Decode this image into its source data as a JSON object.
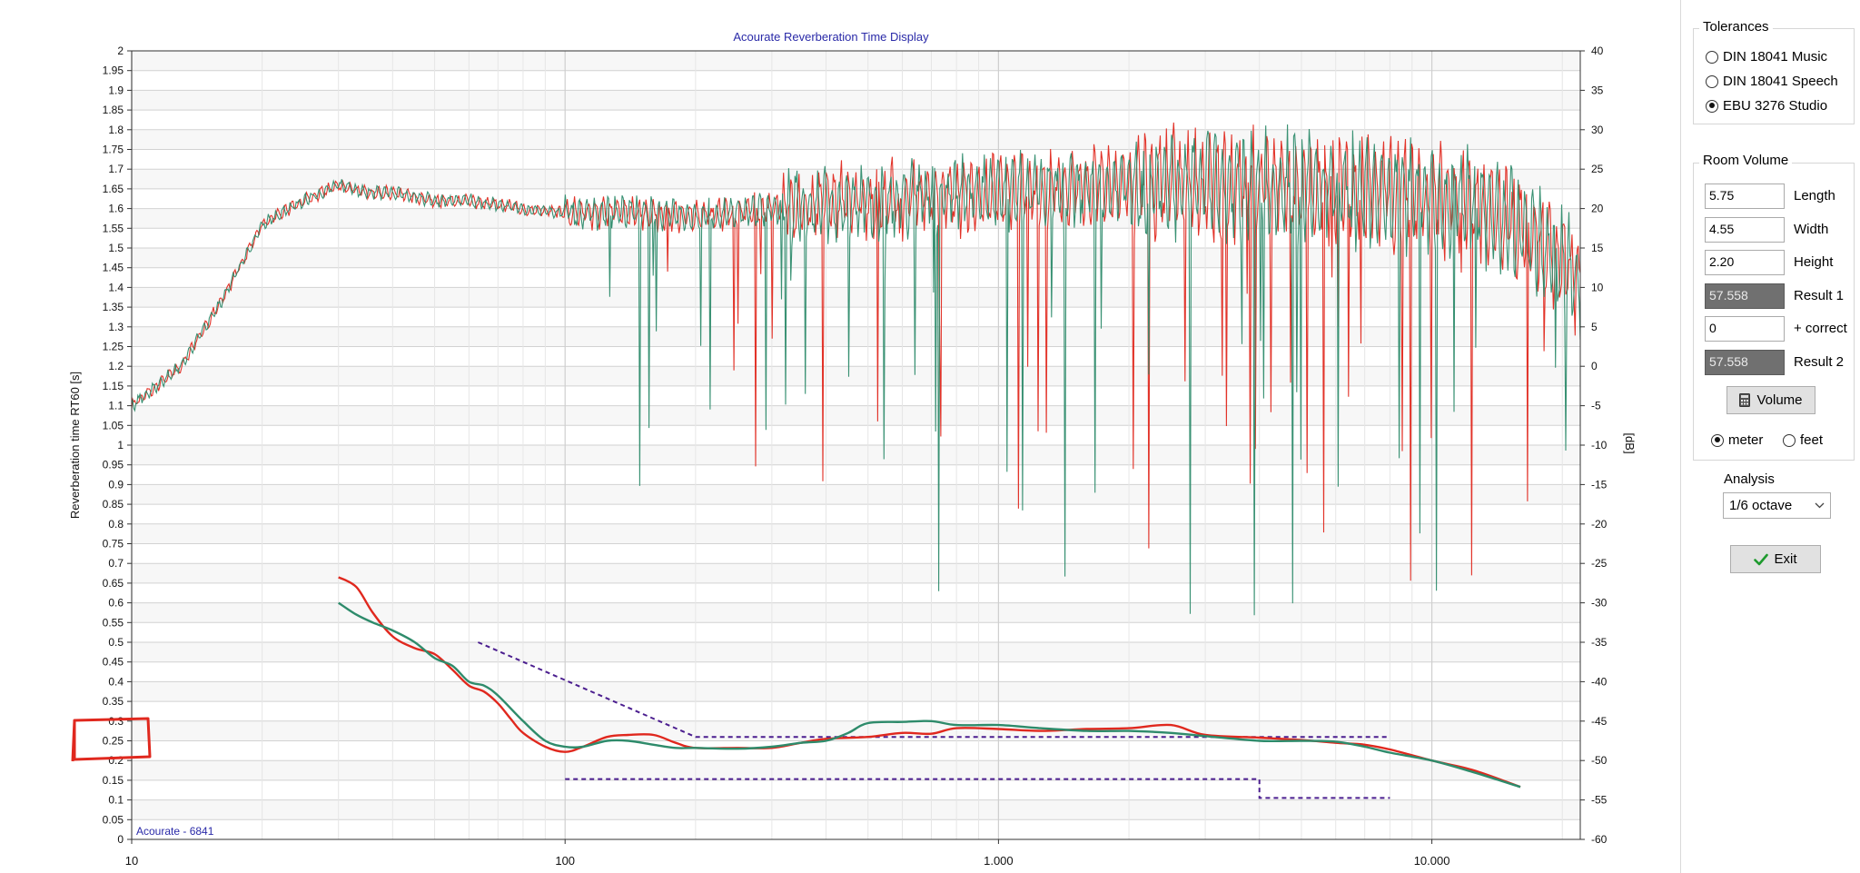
{
  "chart_data": {
    "type": "line",
    "title": "Acourate Reverberation Time Display",
    "watermark": "Acourate - 6841",
    "xlabel": "",
    "ylabel": "Reverberation time RT60 [s]",
    "y2label": "[dB]",
    "x_scale": "log",
    "xlim": [
      10,
      22000
    ],
    "ylim": [
      0,
      2
    ],
    "y2lim": [
      -60,
      40
    ],
    "grid": true,
    "x_tick_labels": [
      {
        "value": 10,
        "label": "10"
      },
      {
        "value": 100,
        "label": "100"
      },
      {
        "value": 1000,
        "label": "1.000"
      },
      {
        "value": 10000,
        "label": "10.000"
      }
    ],
    "y_ticks": [
      "0",
      "0.05",
      "0.1",
      "0.15",
      "0.2",
      "0.25",
      "0.3",
      "0.35",
      "0.4",
      "0.45",
      "0.5",
      "0.55",
      "0.6",
      "0.65",
      "0.7",
      "0.75",
      "0.8",
      "0.85",
      "0.9",
      "0.95",
      "1",
      "1.05",
      "1.1",
      "1.15",
      "1.2",
      "1.25",
      "1.3",
      "1.35",
      "1.4",
      "1.45",
      "1.5",
      "1.55",
      "1.6",
      "1.65",
      "1.7",
      "1.75",
      "1.8",
      "1.85",
      "1.9",
      "1.95",
      "2"
    ],
    "y2_ticks": [
      "-60",
      "-55",
      "-50",
      "-45",
      "-40",
      "-35",
      "-30",
      "-25",
      "-20",
      "-15",
      "-10",
      "-5",
      "0",
      "5",
      "10",
      "15",
      "20",
      "25",
      "30",
      "35",
      "40"
    ],
    "rt60_series": [
      {
        "color": "#e0281e",
        "points": [
          [
            30,
            0.665
          ],
          [
            33,
            0.64
          ],
          [
            36,
            0.575
          ],
          [
            40,
            0.515
          ],
          [
            45,
            0.485
          ],
          [
            50,
            0.47
          ],
          [
            55,
            0.43
          ],
          [
            60,
            0.39
          ],
          [
            65,
            0.375
          ],
          [
            70,
            0.345
          ],
          [
            75,
            0.305
          ],
          [
            80,
            0.27
          ],
          [
            90,
            0.235
          ],
          [
            100,
            0.222
          ],
          [
            110,
            0.235
          ],
          [
            125,
            0.26
          ],
          [
            140,
            0.265
          ],
          [
            160,
            0.265
          ],
          [
            180,
            0.245
          ],
          [
            200,
            0.232
          ],
          [
            250,
            0.232
          ],
          [
            300,
            0.232
          ],
          [
            350,
            0.245
          ],
          [
            400,
            0.255
          ],
          [
            500,
            0.26
          ],
          [
            600,
            0.27
          ],
          [
            700,
            0.268
          ],
          [
            800,
            0.282
          ],
          [
            1000,
            0.28
          ],
          [
            1250,
            0.275
          ],
          [
            1600,
            0.28
          ],
          [
            2000,
            0.282
          ],
          [
            2500,
            0.29
          ],
          [
            3000,
            0.265
          ],
          [
            4000,
            0.258
          ],
          [
            5000,
            0.252
          ],
          [
            6000,
            0.245
          ],
          [
            7000,
            0.24
          ],
          [
            8000,
            0.228
          ],
          [
            10000,
            0.2
          ],
          [
            12500,
            0.175
          ],
          [
            16000,
            0.133
          ]
        ]
      },
      {
        "color": "#2e8b6b",
        "points": [
          [
            30,
            0.6
          ],
          [
            33,
            0.57
          ],
          [
            36,
            0.55
          ],
          [
            40,
            0.53
          ],
          [
            45,
            0.5
          ],
          [
            50,
            0.46
          ],
          [
            55,
            0.44
          ],
          [
            60,
            0.4
          ],
          [
            65,
            0.39
          ],
          [
            70,
            0.365
          ],
          [
            80,
            0.3
          ],
          [
            90,
            0.25
          ],
          [
            100,
            0.235
          ],
          [
            110,
            0.235
          ],
          [
            125,
            0.25
          ],
          [
            140,
            0.25
          ],
          [
            160,
            0.24
          ],
          [
            180,
            0.232
          ],
          [
            200,
            0.232
          ],
          [
            250,
            0.23
          ],
          [
            300,
            0.235
          ],
          [
            350,
            0.245
          ],
          [
            400,
            0.25
          ],
          [
            450,
            0.27
          ],
          [
            500,
            0.295
          ],
          [
            600,
            0.298
          ],
          [
            700,
            0.3
          ],
          [
            800,
            0.29
          ],
          [
            1000,
            0.29
          ],
          [
            1250,
            0.282
          ],
          [
            1600,
            0.275
          ],
          [
            2000,
            0.275
          ],
          [
            2500,
            0.27
          ],
          [
            3000,
            0.262
          ],
          [
            4000,
            0.25
          ],
          [
            5000,
            0.25
          ],
          [
            6000,
            0.248
          ],
          [
            7000,
            0.235
          ],
          [
            8000,
            0.22
          ],
          [
            10000,
            0.2
          ],
          [
            12500,
            0.17
          ],
          [
            16000,
            0.133
          ]
        ]
      }
    ],
    "tolerance_upper": [
      [
        63,
        0.5
      ],
      [
        200,
        0.26
      ],
      [
        8000,
        0.26
      ]
    ],
    "tolerance_lower": [
      [
        100,
        0.153
      ],
      [
        4000,
        0.153
      ],
      [
        4000,
        0.105
      ],
      [
        8000,
        0.105
      ]
    ],
    "spectrum_db_envelope": [
      [
        10,
        -5
      ],
      [
        13,
        0
      ],
      [
        16,
        8
      ],
      [
        20,
        18
      ],
      [
        25,
        21
      ],
      [
        30,
        23
      ],
      [
        35,
        22
      ],
      [
        40,
        22
      ],
      [
        50,
        21
      ],
      [
        60,
        21
      ],
      [
        80,
        20
      ],
      [
        100,
        19.5
      ],
      [
        150,
        19.5
      ],
      [
        200,
        19
      ],
      [
        300,
        20
      ],
      [
        500,
        21
      ],
      [
        1000,
        22
      ],
      [
        2000,
        23
      ],
      [
        4000,
        23
      ],
      [
        8000,
        22
      ],
      [
        12000,
        21
      ],
      [
        18000,
        16
      ],
      [
        22000,
        10
      ]
    ],
    "annotation": "red hand-drawn box around y ticks 0.25-0.3"
  },
  "sidebar": {
    "tolerances": {
      "title": "Tolerances",
      "options": [
        {
          "label": "DIN 18041 Music",
          "checked": false
        },
        {
          "label": "DIN 18041 Speech",
          "checked": false
        },
        {
          "label": "EBU 3276 Studio",
          "checked": true
        }
      ]
    },
    "room_volume": {
      "title": "Room Volume",
      "fields": [
        {
          "value": "5.75",
          "label": "Length",
          "dark": false
        },
        {
          "value": "4.55",
          "label": "Width",
          "dark": false
        },
        {
          "value": "2.20",
          "label": "Height",
          "dark": false
        },
        {
          "value": "57.558",
          "label": "Result 1",
          "dark": true
        },
        {
          "value": "0",
          "label": "+ correct",
          "dark": false
        },
        {
          "value": "57.558",
          "label": "Result 2",
          "dark": true
        }
      ],
      "volume_button": "Volume",
      "units": [
        {
          "label": "meter",
          "checked": true
        },
        {
          "label": "feet",
          "checked": false
        }
      ]
    },
    "analysis": {
      "label": "Analysis",
      "selected": "1/6 octave"
    },
    "exit_button": "Exit"
  }
}
